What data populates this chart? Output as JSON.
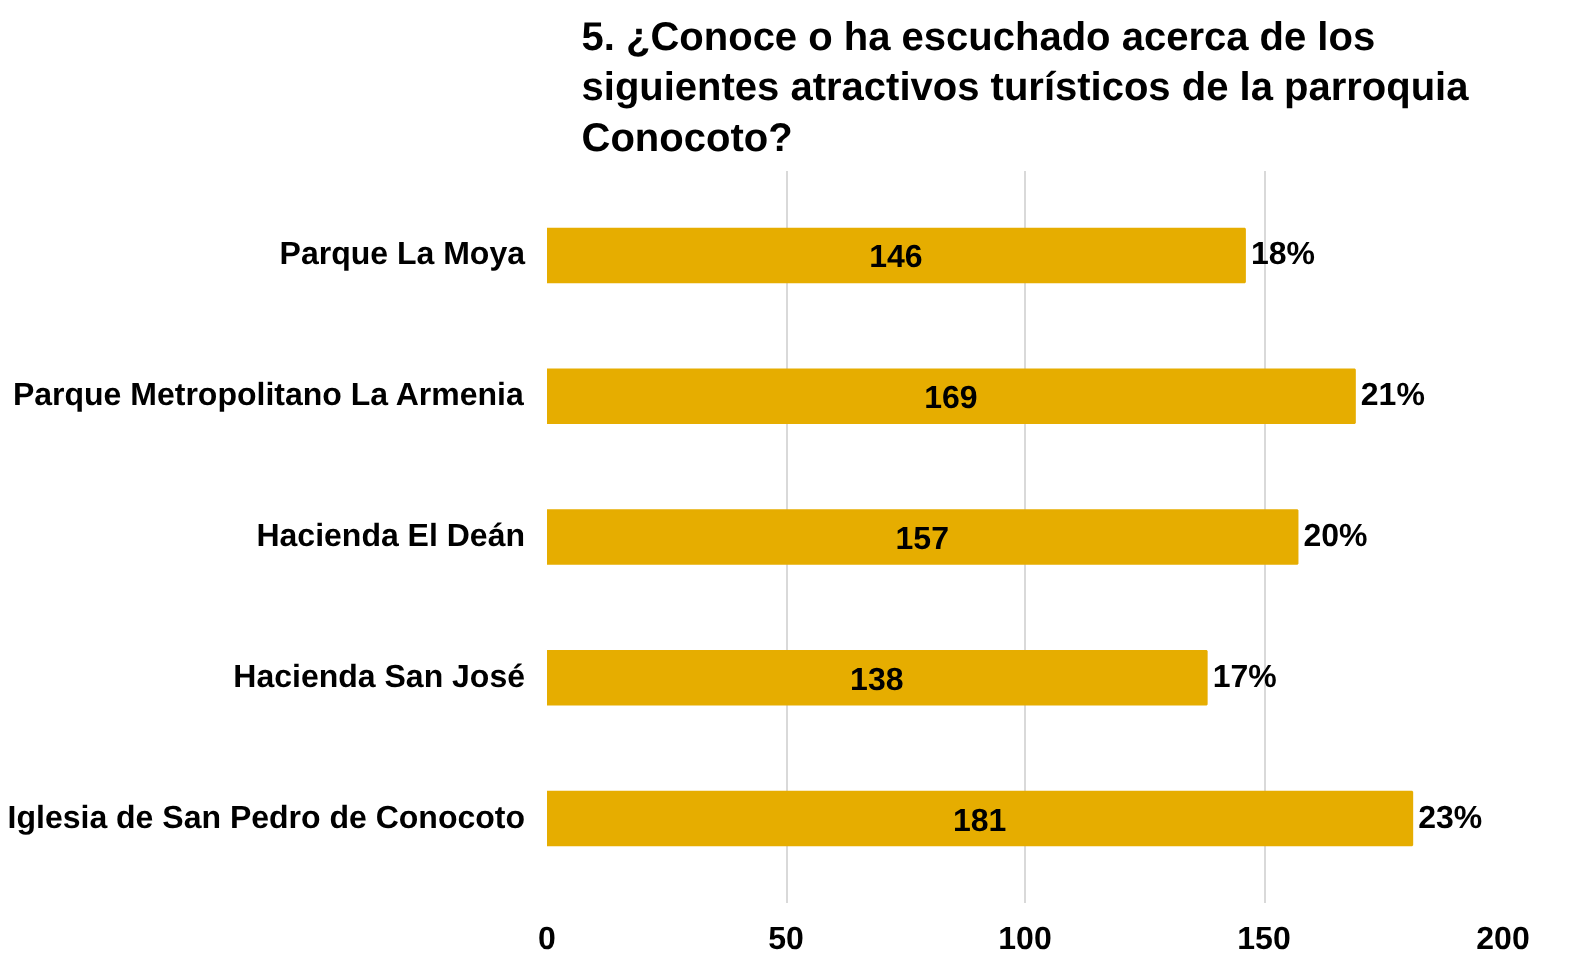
{
  "chart_data": {
    "type": "bar",
    "orientation": "horizontal",
    "title": "5. ¿Conoce o ha escuchado acerca de los siguientes atractivos turísticos de la parroquia Conocoto?",
    "categories": [
      "Parque La Moya",
      "Parque Metropolitano La Armenia",
      "Hacienda El Deán",
      "Hacienda San José",
      "Iglesia de San Pedro de Conocoto"
    ],
    "values": [
      146,
      169,
      157,
      138,
      181
    ],
    "color": "#e6ad00",
    "xlim": [
      0,
      200
    ],
    "xticks": [
      0,
      50,
      100,
      150,
      200
    ],
    "grid": "x",
    "data_labels": true,
    "annotations": [
      {
        "text": "18%",
        "x": 146,
        "y": "Parque La Moya"
      },
      {
        "text": "21%",
        "x": 169,
        "y": "Parque Metropolitano La Armenia"
      },
      {
        "text": "20%",
        "x": 157,
        "y": "Hacienda El Deán"
      },
      {
        "text": "17%",
        "x": 138,
        "y": "Hacienda San José"
      },
      {
        "text": "23%",
        "x": 181,
        "y": "Iglesia de San Pedro de Conocoto"
      }
    ]
  }
}
